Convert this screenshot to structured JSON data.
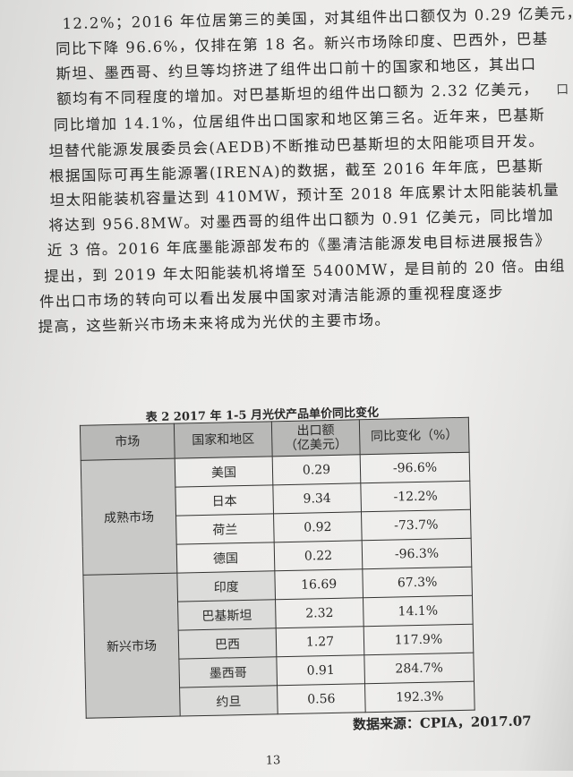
{
  "body_lines": [
    "12.2%；2016 年位居第三的美国，对其组件出口额仅为 0.29 亿美元，",
    "同比下降 96.6%，仅排在第 18 名。新兴市场除印度、巴西外，巴基",
    "斯坦、墨西哥、约旦等均挤进了组件出口前十的国家和地区，其出口",
    "额均有不同程度的增加。对巴基斯坦的组件出口额为 2.32 亿美元，",
    "同比增加 14.1%，位居组件出口国家和地区第三名。近年来，巴基斯",
    "坦替代能源发展委员会(AEDB)不断推动巴基斯坦的太阳能项目开发。",
    "根据国际可再生能源署(IRENA)的数据，截至 2016 年年底，巴基斯",
    "坦太阳能装机容量达到 410MW，预计至 2018 年底累计太阳能装机量",
    "将达到 956.8MW。对墨西哥的组件出口额为 0.91 亿美元，同比增加",
    "近 3 倍。2016 年底墨能源部发布的《墨清洁能源发电目标进展报告》",
    "提出，到 2019 年太阳能装机将增至 5400MW，是目前的 20 倍。由组",
    "件出口市场的转向可以看出发展中国家对清洁能源的重视程度逐步",
    "提高，这些新兴市场未来将成为光伏的主要市场。"
  ],
  "edge_fragment": "口",
  "table": {
    "caption": "表 2 2017 年 1-5 月光伏产品单价同比变化",
    "headers": [
      "市场",
      "国家和地区",
      "出口额\n（亿美元）",
      "同比变化（%）"
    ],
    "groups": [
      {
        "market": "成熟市场",
        "rows": [
          {
            "country": "美国",
            "export": "0.29",
            "change": "-96.6%"
          },
          {
            "country": "日本",
            "export": "9.34",
            "change": "-12.2%"
          },
          {
            "country": "荷兰",
            "export": "0.92",
            "change": "-73.7%"
          },
          {
            "country": "德国",
            "export": "0.22",
            "change": "-96.3%"
          }
        ]
      },
      {
        "market": "新兴市场",
        "rows": [
          {
            "country": "印度",
            "export": "16.69",
            "change": "67.3%"
          },
          {
            "country": "巴基斯坦",
            "export": "2.32",
            "change": "14.1%"
          },
          {
            "country": "巴西",
            "export": "1.27",
            "change": "117.9%"
          },
          {
            "country": "墨西哥",
            "export": "0.91",
            "change": "284.7%"
          },
          {
            "country": "约旦",
            "export": "0.56",
            "change": "192.3%"
          }
        ]
      }
    ],
    "source": "数据来源：CPIA，2017.07"
  },
  "page_number": "13"
}
